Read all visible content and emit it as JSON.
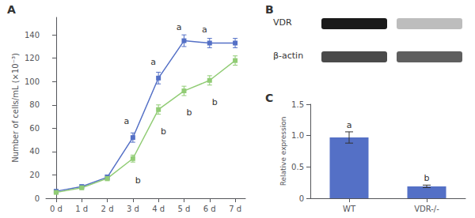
{
  "chart_data": [
    {
      "type": "line",
      "title": "A",
      "ylabel": "Number of cells/mL (×10⁻³)",
      "x": [
        0,
        1,
        2,
        3,
        4,
        5,
        6,
        7
      ],
      "xlim": [
        -0.4,
        7.4
      ],
      "xticks": [
        {
          "value": 0,
          "label": "0 d"
        },
        {
          "value": 1,
          "label": "1 d"
        },
        {
          "value": 2,
          "label": "2 d"
        },
        {
          "value": 3,
          "label": "3 d"
        },
        {
          "value": 4,
          "label": "4 d"
        },
        {
          "value": 5,
          "label": "5 d"
        },
        {
          "value": 6,
          "label": "6 d"
        },
        {
          "value": 7,
          "label": "7 d"
        }
      ],
      "ylim": [
        0,
        155
      ],
      "yticks": [
        0,
        20,
        40,
        60,
        80,
        100,
        120,
        140
      ],
      "grid": false,
      "marker": "square",
      "series": [
        {
          "values": [
            6,
            10,
            18,
            52,
            103,
            135,
            133,
            133
          ],
          "errors": [
            1,
            1.5,
            2,
            4,
            5,
            5,
            4,
            4
          ],
          "annotations": [
            {
              "x": 2.75,
              "y": 62,
              "label": "a"
            },
            {
              "x": 3.8,
              "y": 113,
              "label": "a"
            },
            {
              "x": 4.8,
              "y": 143,
              "label": "a"
            },
            {
              "x": 5.8,
              "y": 141,
              "label": "a"
            }
          ]
        },
        {
          "values": [
            5,
            9,
            17,
            34,
            76,
            92,
            101,
            118
          ],
          "errors": [
            1,
            1.5,
            2,
            3,
            4,
            4,
            4,
            4
          ],
          "annotations": [
            {
              "x": 3.2,
              "y": 19,
              "label": "b"
            },
            {
              "x": 4.2,
              "y": 61,
              "label": "b"
            },
            {
              "x": 5.2,
              "y": 77,
              "label": "b"
            },
            {
              "x": 6.2,
              "y": 86,
              "label": "b"
            }
          ]
        }
      ]
    },
    {
      "type": "blot",
      "title": "B",
      "categories": [
        "VDR",
        "β-actin"
      ],
      "colors": [
        "#1a1a1a",
        "#bdbdbd",
        "#4a4a4a",
        "#5f5f5f"
      ]
    },
    {
      "type": "bar",
      "title": "C",
      "categories": [
        "WT",
        "VDR-/-"
      ],
      "values": [
        0.97,
        0.19
      ],
      "errors": [
        0.09,
        0.02
      ],
      "ylabel": "Relative expression",
      "ylim": [
        0,
        1.5
      ],
      "yticks": [
        0,
        0.5,
        {
          "value": 1.0,
          "label": "1.0"
        },
        1.5
      ],
      "grid": false,
      "annotations": [
        {
          "x": "WT",
          "y": 1.1,
          "label": "a"
        },
        {
          "x": "VDR-/-",
          "y": 0.25,
          "label": "b"
        }
      ]
    }
  ]
}
